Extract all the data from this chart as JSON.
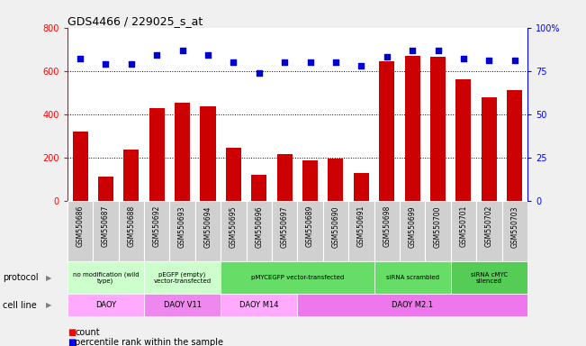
{
  "title": "GDS4466 / 229025_s_at",
  "samples": [
    "GSM550686",
    "GSM550687",
    "GSM550688",
    "GSM550692",
    "GSM550693",
    "GSM550694",
    "GSM550695",
    "GSM550696",
    "GSM550697",
    "GSM550689",
    "GSM550690",
    "GSM550691",
    "GSM550698",
    "GSM550699",
    "GSM550700",
    "GSM550701",
    "GSM550702",
    "GSM550703"
  ],
  "counts": [
    320,
    110,
    235,
    430,
    455,
    435,
    245,
    120,
    215,
    185,
    195,
    130,
    645,
    670,
    665,
    560,
    480,
    510
  ],
  "percentiles": [
    82,
    79,
    79,
    84,
    87,
    84,
    80,
    74,
    80,
    80,
    80,
    78,
    83,
    87,
    87,
    82,
    81,
    81
  ],
  "bar_color": "#cc0000",
  "dot_color": "#0000cc",
  "ylim_left": [
    0,
    800
  ],
  "ylim_right": [
    0,
    100
  ],
  "yticks_left": [
    0,
    200,
    400,
    600,
    800
  ],
  "yticks_right": [
    0,
    25,
    50,
    75,
    100
  ],
  "protocol_groups": [
    {
      "label": "no modification (wild\ntype)",
      "start": 0,
      "end": 3,
      "color": "#ccffcc"
    },
    {
      "label": "pEGFP (empty)\nvector-transfected",
      "start": 3,
      "end": 6,
      "color": "#ccffcc"
    },
    {
      "label": "pMYCEGFP vector-transfected",
      "start": 6,
      "end": 12,
      "color": "#66dd66"
    },
    {
      "label": "siRNA scrambled",
      "start": 12,
      "end": 15,
      "color": "#66dd66"
    },
    {
      "label": "siRNA cMYC\nsilenced",
      "start": 15,
      "end": 18,
      "color": "#55cc55"
    }
  ],
  "cellline_groups": [
    {
      "label": "DAOY",
      "start": 0,
      "end": 3,
      "color": "#ffaaff"
    },
    {
      "label": "DAOY V11",
      "start": 3,
      "end": 6,
      "color": "#ee88ee"
    },
    {
      "label": "DAOY M14",
      "start": 6,
      "end": 9,
      "color": "#ffaaff"
    },
    {
      "label": "DAOY M2.1",
      "start": 9,
      "end": 18,
      "color": "#ee77ee"
    }
  ],
  "protocol_label": "protocol",
  "cellline_label": "cell line",
  "legend_count": "count",
  "legend_pct": "percentile rank within the sample",
  "bg_color": "#f0f0f0",
  "plot_bg": "#ffffff",
  "tick_box_color": "#d0d0d0"
}
